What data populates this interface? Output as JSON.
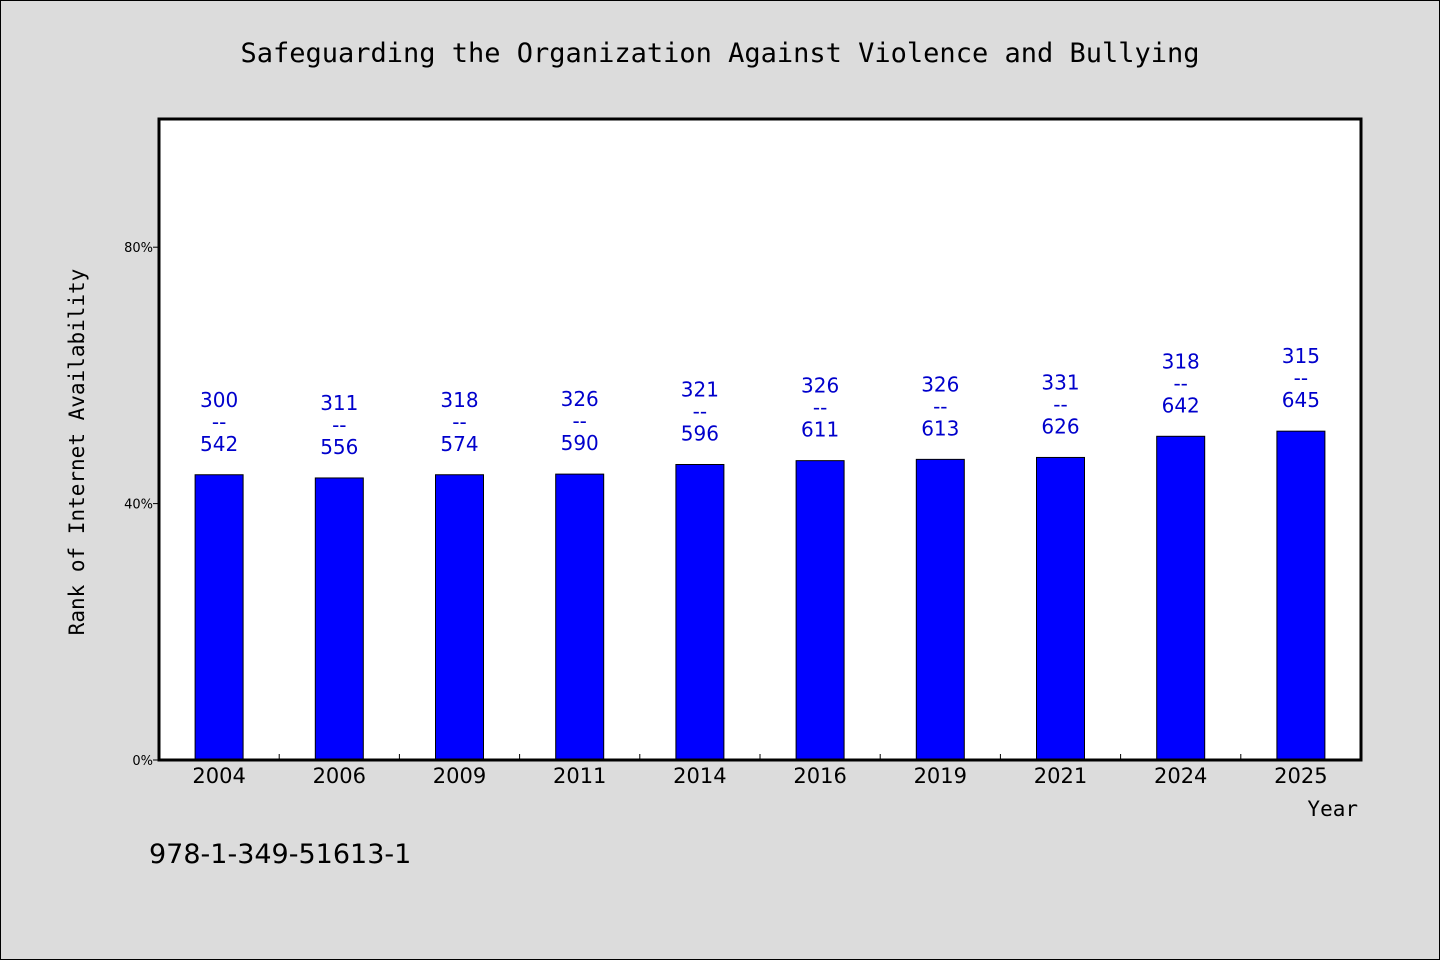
{
  "chart_data": {
    "type": "bar",
    "title": "Safeguarding the Organization Against Violence and Bullying",
    "xlabel": "Year",
    "ylabel": "Rank of Internet Availability",
    "ylim": [
      0,
      100
    ],
    "yticks": [
      0,
      40,
      80
    ],
    "ytick_labels": [
      "0%",
      "40%",
      "80%"
    ],
    "grid": false,
    "bar_color": "#0000ff",
    "label_color": "#0000cc",
    "categories": [
      "2004",
      "2006",
      "2009",
      "2011",
      "2014",
      "2016",
      "2019",
      "2021",
      "2024",
      "2025"
    ],
    "values": [
      44.5,
      44.0,
      44.5,
      44.6,
      46.1,
      46.7,
      46.9,
      47.2,
      50.5,
      51.3
    ],
    "data_labels": [
      {
        "top": "300",
        "sep": "--",
        "bottom": "542"
      },
      {
        "top": "311",
        "sep": "--",
        "bottom": "556"
      },
      {
        "top": "318",
        "sep": "--",
        "bottom": "574"
      },
      {
        "top": "326",
        "sep": "--",
        "bottom": "590"
      },
      {
        "top": "321",
        "sep": "--",
        "bottom": "596"
      },
      {
        "top": "326",
        "sep": "--",
        "bottom": "611"
      },
      {
        "top": "326",
        "sep": "--",
        "bottom": "613"
      },
      {
        "top": "331",
        "sep": "--",
        "bottom": "626"
      },
      {
        "top": "318",
        "sep": "--",
        "bottom": "642"
      },
      {
        "top": "315",
        "sep": "--",
        "bottom": "645"
      }
    ]
  },
  "footnote": "978-1-349-51613-1"
}
